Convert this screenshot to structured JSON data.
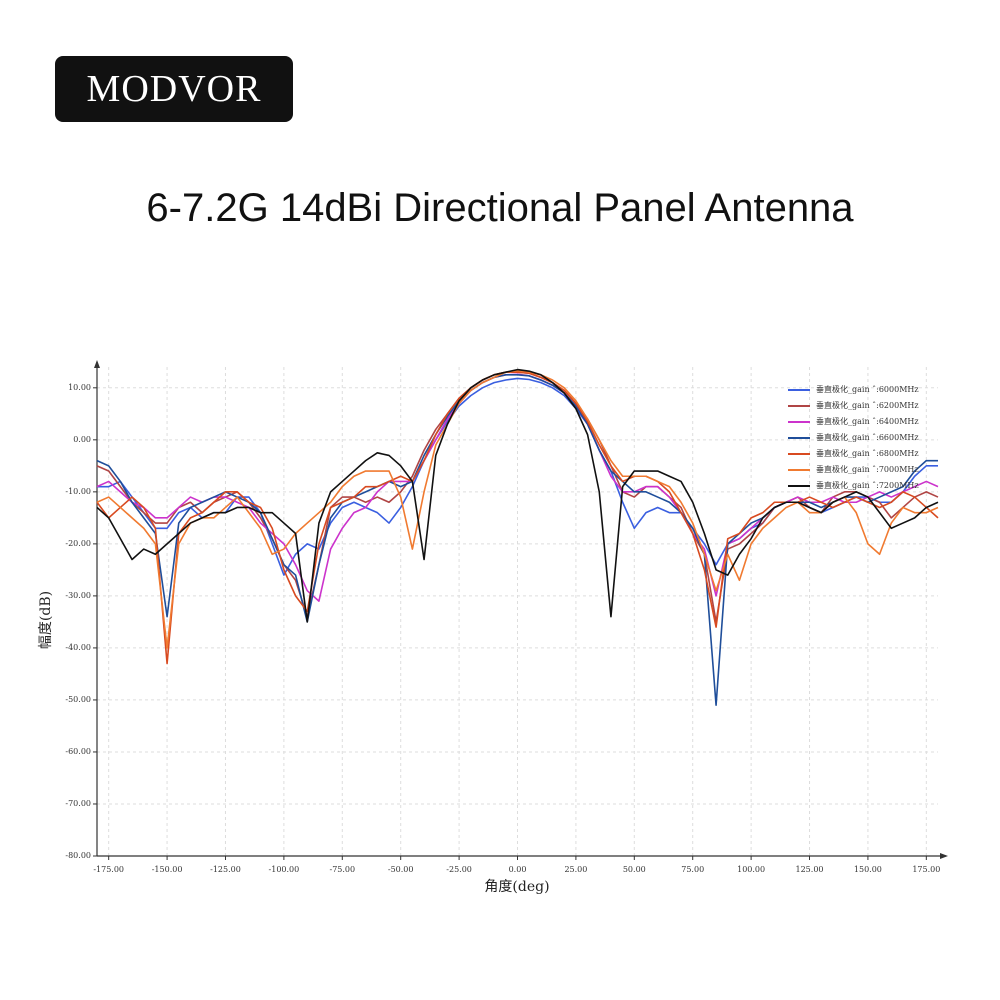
{
  "brand": "MODVOR",
  "chart_data": {
    "type": "line",
    "title": "6-7.2G 14dBi Directional Panel Antenna",
    "xlabel": "角度(deg)",
    "ylabel": "幅度(dB)",
    "xlim": [
      -180,
      180
    ],
    "ylim": [
      -80,
      14
    ],
    "grid": true,
    "legend": "upper right",
    "xticks": [
      {
        "value": -175,
        "label": "-175.00"
      },
      {
        "value": -150,
        "label": "-150.00"
      },
      {
        "value": -125,
        "label": "-125.00"
      },
      {
        "value": -100,
        "label": "-100.00"
      },
      {
        "value": -75,
        "label": "-75.00"
      },
      {
        "value": -50,
        "label": "-50.00"
      },
      {
        "value": -25,
        "label": "-25.00"
      },
      {
        "value": 0,
        "label": "0.00"
      },
      {
        "value": 25,
        "label": "25.00"
      },
      {
        "value": 50,
        "label": "50.00"
      },
      {
        "value": 75,
        "label": "75.00"
      },
      {
        "value": 100,
        "label": "100.00"
      },
      {
        "value": 125,
        "label": "125.00"
      },
      {
        "value": 150,
        "label": "150.00"
      },
      {
        "value": 175,
        "label": "175.00"
      }
    ],
    "yticks": [
      {
        "value": 10,
        "label": "10.00"
      },
      {
        "value": 0,
        "label": "0.00"
      },
      {
        "value": -10,
        "label": "-10.00"
      },
      {
        "value": -20,
        "label": "-20.00"
      },
      {
        "value": -30,
        "label": "-30.00"
      },
      {
        "value": -40,
        "label": "-40.00"
      },
      {
        "value": -50,
        "label": "-50.00"
      },
      {
        "value": -60,
        "label": "-60.00"
      },
      {
        "value": -70,
        "label": "-70.00"
      },
      {
        "value": -80,
        "label": "-80.00"
      }
    ],
    "x": [
      -180,
      -175,
      -170,
      -165,
      -160,
      -155,
      -150,
      -145,
      -140,
      -135,
      -130,
      -125,
      -120,
      -115,
      -110,
      -105,
      -100,
      -95,
      -90,
      -85,
      -80,
      -75,
      -70,
      -65,
      -60,
      -55,
      -50,
      -45,
      -40,
      -35,
      -30,
      -25,
      -20,
      -15,
      -10,
      -5,
      0,
      5,
      10,
      15,
      20,
      25,
      30,
      35,
      40,
      45,
      50,
      55,
      60,
      65,
      70,
      75,
      80,
      85,
      90,
      95,
      100,
      105,
      110,
      115,
      120,
      125,
      130,
      135,
      140,
      145,
      150,
      155,
      160,
      165,
      170,
      175,
      180
    ],
    "series": [
      {
        "name": "垂直极化_gain ˆ:6000MHz",
        "color": "#3a5fe0",
        "values": [
          -9,
          -9,
          -8,
          -11,
          -14,
          -17,
          -17,
          -14,
          -13,
          -15,
          -14,
          -14,
          -11,
          -11,
          -14,
          -20,
          -26,
          -22,
          -20,
          -21,
          -16,
          -13,
          -12,
          -13,
          -14,
          -16,
          -13,
          -9,
          -4,
          0,
          3.5,
          6.5,
          8.5,
          10,
          11,
          11.5,
          11.8,
          11.6,
          11,
          10,
          8.5,
          6,
          3,
          -2,
          -6,
          -12,
          -17,
          -14,
          -13,
          -14,
          -14,
          -17,
          -20,
          -24,
          -20,
          -19,
          -17,
          -16,
          -13,
          -12,
          -12,
          -13,
          -14,
          -13,
          -12,
          -11,
          -11,
          -12,
          -12,
          -10,
          -7,
          -5,
          -5
        ]
      },
      {
        "name": "垂直极化_gain ˆ:6200MHz",
        "color": "#b04545",
        "values": [
          -5,
          -6,
          -9,
          -12,
          -14,
          -16,
          -16,
          -13,
          -12,
          -14,
          -12,
          -11,
          -10,
          -12,
          -15,
          -19,
          -24,
          -27,
          -34,
          -24,
          -13,
          -11,
          -11,
          -12,
          -11,
          -12,
          -10,
          -7,
          -2,
          2,
          5,
          8,
          10,
          11.5,
          12.5,
          13,
          13,
          12.8,
          12,
          11,
          9.5,
          7,
          4,
          0,
          -5,
          -10,
          -11,
          -9,
          -9,
          -11,
          -13,
          -18,
          -22,
          -35,
          -21,
          -20,
          -18,
          -16,
          -13,
          -12,
          -11,
          -13,
          -14,
          -11,
          -10,
          -10,
          -11,
          -12,
          -15,
          -13,
          -11,
          -10,
          -11
        ]
      },
      {
        "name": "垂直极化_gain ˆ:6400MHz",
        "color": "#cc33cc",
        "values": [
          -9,
          -8,
          -10,
          -12,
          -13,
          -15,
          -15,
          -13,
          -11,
          -12,
          -11,
          -11,
          -12,
          -13,
          -16,
          -18,
          -20,
          -24,
          -29,
          -31,
          -21,
          -17,
          -14,
          -13,
          -10,
          -8,
          -8,
          -8,
          -4,
          0,
          4,
          7,
          9.5,
          11,
          12,
          12.5,
          12.6,
          12.3,
          11.5,
          10.5,
          9,
          6.5,
          3,
          -2,
          -7,
          -10,
          -10,
          -9,
          -9,
          -11,
          -14,
          -18,
          -21,
          -30,
          -20,
          -19,
          -17,
          -15,
          -13,
          -12,
          -11,
          -12,
          -12,
          -11,
          -12,
          -12,
          -11,
          -10,
          -11,
          -10,
          -9,
          -8,
          -9
        ]
      },
      {
        "name": "垂直极化_gain ˆ:6600MHz",
        "color": "#1f4e9a",
        "values": [
          -4,
          -5,
          -8,
          -12,
          -15,
          -18,
          -34,
          -16,
          -13,
          -12,
          -11,
          -10,
          -11,
          -12,
          -14,
          -19,
          -24,
          -26,
          -35,
          -24,
          -15,
          -12,
          -11,
          -10,
          -9,
          -8,
          -9,
          -8,
          -3,
          1,
          4.5,
          7.5,
          9.5,
          11,
          12,
          12.5,
          12.5,
          12.3,
          11.5,
          10.5,
          9,
          6.5,
          3,
          -2,
          -6,
          -8,
          -10,
          -10,
          -11,
          -12,
          -14,
          -17,
          -22,
          -51,
          -20,
          -18,
          -16,
          -15,
          -13,
          -12,
          -12,
          -12,
          -13,
          -12,
          -11,
          -11,
          -12,
          -11,
          -10,
          -9,
          -6,
          -4,
          -4
        ]
      },
      {
        "name": "垂直极化_gain ˆ:6800MHz",
        "color": "#d84a20",
        "values": [
          -12,
          -15,
          -13,
          -11,
          -13,
          -17,
          -43,
          -18,
          -15,
          -14,
          -12,
          -10,
          -10,
          -12,
          -13,
          -17,
          -25,
          -30,
          -33,
          -20,
          -13,
          -12,
          -11,
          -9,
          -9,
          -8,
          -7,
          -8,
          -4,
          1,
          5,
          8,
          10,
          11.5,
          12.5,
          13,
          13,
          12.8,
          12,
          11,
          9.5,
          7,
          3.5,
          -1,
          -5,
          -8,
          -7,
          -7,
          -8,
          -10,
          -14,
          -18,
          -25,
          -36,
          -19,
          -18,
          -15,
          -14,
          -12,
          -12,
          -12,
          -11,
          -12,
          -13,
          -12,
          -11,
          -12,
          -13,
          -12,
          -10,
          -11,
          -13,
          -15
        ]
      },
      {
        "name": "垂直极化_gain ˆ:7000MHz",
        "color": "#f07a30",
        "values": [
          -12,
          -11,
          -13,
          -15,
          -17,
          -20,
          -40,
          -20,
          -16,
          -15,
          -15,
          -13,
          -11,
          -14,
          -17,
          -22,
          -21,
          -18,
          -16,
          -14,
          -12,
          -9,
          -7,
          -6,
          -6,
          -6,
          -11,
          -21,
          -10,
          -1,
          3,
          7,
          9.5,
          11,
          12,
          13,
          13.3,
          13,
          12.5,
          11.5,
          10,
          7.5,
          4,
          0,
          -4,
          -7,
          -7,
          -7,
          -8,
          -9,
          -12,
          -16,
          -22,
          -29,
          -22,
          -27,
          -20,
          -17,
          -15,
          -13,
          -12,
          -14,
          -14,
          -12,
          -11,
          -14,
          -20,
          -22,
          -16,
          -13,
          -14,
          -14,
          -13
        ]
      },
      {
        "name": "垂直极化_gain ˆ:7200MHz",
        "color": "#111111",
        "values": [
          -13,
          -15,
          -19,
          -23,
          -21,
          -22,
          -20,
          -18,
          -16,
          -15,
          -14,
          -14,
          -13,
          -13,
          -14,
          -14,
          -16,
          -18,
          -35,
          -16,
          -10,
          -8,
          -6,
          -4,
          -2.5,
          -3,
          -5,
          -8,
          -23,
          -3,
          3,
          7.5,
          10,
          11.5,
          12.5,
          13,
          13.5,
          13.2,
          12.5,
          11,
          9,
          6,
          1,
          -10,
          -34,
          -9,
          -6,
          -6,
          -6,
          -7,
          -8,
          -12,
          -18,
          -25,
          -26,
          -22,
          -19,
          -15,
          -13,
          -12,
          -12,
          -13,
          -14,
          -12,
          -11,
          -10,
          -11,
          -14,
          -17,
          -16,
          -15,
          -13,
          -12
        ]
      }
    ]
  }
}
